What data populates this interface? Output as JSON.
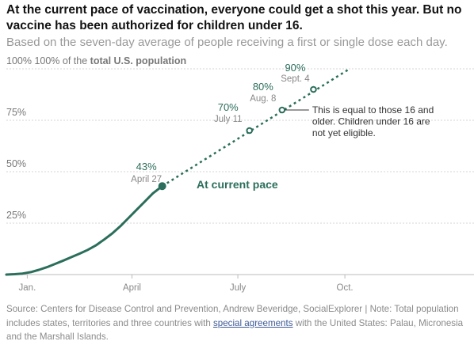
{
  "title": "At the current pace of vaccination, everyone could get a shot this year. But no vaccine has been authorized for children under 16.",
  "subtitle": "Based on the seven-day average of people receiving a first or single dose each day.",
  "source": {
    "before_link": "Source: Centers for Disease Control and Prevention, Andrew Beveridge, SocialExplorer | Note: Total population includes states, territories and three countries with ",
    "link_text": "special agreements",
    "after_link": " with the United States: Palau, Micronesia and the Marshall Islands."
  },
  "colors": {
    "line": "#2b6e5b",
    "grid": "#d6d6d6",
    "text_muted": "#888888"
  },
  "chart_data": {
    "type": "line",
    "title": "At the current pace of vaccination, everyone could get a shot this year. But no vaccine has been authorized for children under 16.",
    "subtitle": "Based on the seven-day average of people receiving a first or single dose each day.",
    "ylabel_prefix": "100% of the ",
    "ylabel_bold": "total U.S. population",
    "y_ticks": [
      {
        "value": 100,
        "label": "100%"
      },
      {
        "value": 75,
        "label": "75%"
      },
      {
        "value": 50,
        "label": "50%"
      },
      {
        "value": 25,
        "label": "25%"
      }
    ],
    "ylim": [
      0,
      100
    ],
    "xlim": [
      "2020-12-14",
      "2022-01-20"
    ],
    "x_ticks": [
      {
        "date": "2021-01-01",
        "label": "Jan."
      },
      {
        "date": "2021-04-01",
        "label": "April"
      },
      {
        "date": "2021-07-01",
        "label": "July"
      },
      {
        "date": "2021-10-01",
        "label": "Oct."
      }
    ],
    "grid": true,
    "series": [
      {
        "style": "solid",
        "points": [
          [
            "2020-12-14",
            0.0
          ],
          [
            "2020-12-21",
            0.2
          ],
          [
            "2020-12-28",
            0.5
          ],
          [
            "2021-01-04",
            1.2
          ],
          [
            "2021-01-11",
            2.3
          ],
          [
            "2021-01-18",
            3.6
          ],
          [
            "2021-01-25",
            5.2
          ],
          [
            "2021-02-01",
            6.8
          ],
          [
            "2021-02-08",
            8.5
          ],
          [
            "2021-02-15",
            10.2
          ],
          [
            "2021-02-22",
            12.0
          ],
          [
            "2021-03-01",
            14.2
          ],
          [
            "2021-03-08",
            17.0
          ],
          [
            "2021-03-15",
            20.0
          ],
          [
            "2021-03-22",
            23.5
          ],
          [
            "2021-03-29",
            27.5
          ],
          [
            "2021-04-05",
            31.5
          ],
          [
            "2021-04-12",
            35.5
          ],
          [
            "2021-04-19",
            39.5
          ],
          [
            "2021-04-27",
            43.0
          ]
        ]
      },
      {
        "style": "dashed",
        "name": "At current pace",
        "points": [
          [
            "2021-04-27",
            43.0
          ],
          [
            "2021-10-05",
            100.0
          ]
        ]
      }
    ],
    "milestones": [
      {
        "date": "2021-04-27",
        "value": 43,
        "pct_label": "43%",
        "date_label": "April 27",
        "filled": true
      },
      {
        "date": "2021-07-11",
        "value": 70,
        "pct_label": "70%",
        "date_label": "July 11",
        "filled": false
      },
      {
        "date": "2021-08-08",
        "value": 80,
        "pct_label": "80%",
        "date_label": "Aug. 8",
        "filled": false
      },
      {
        "date": "2021-09-04",
        "value": 90,
        "pct_label": "90%",
        "date_label": "Sept. 4",
        "filled": false
      }
    ],
    "annotations": [
      {
        "at": "2021-08-08",
        "text_lines": [
          "This is equal to those 16 and",
          "older. Children under 16 are",
          "not yet eligible."
        ]
      }
    ]
  }
}
